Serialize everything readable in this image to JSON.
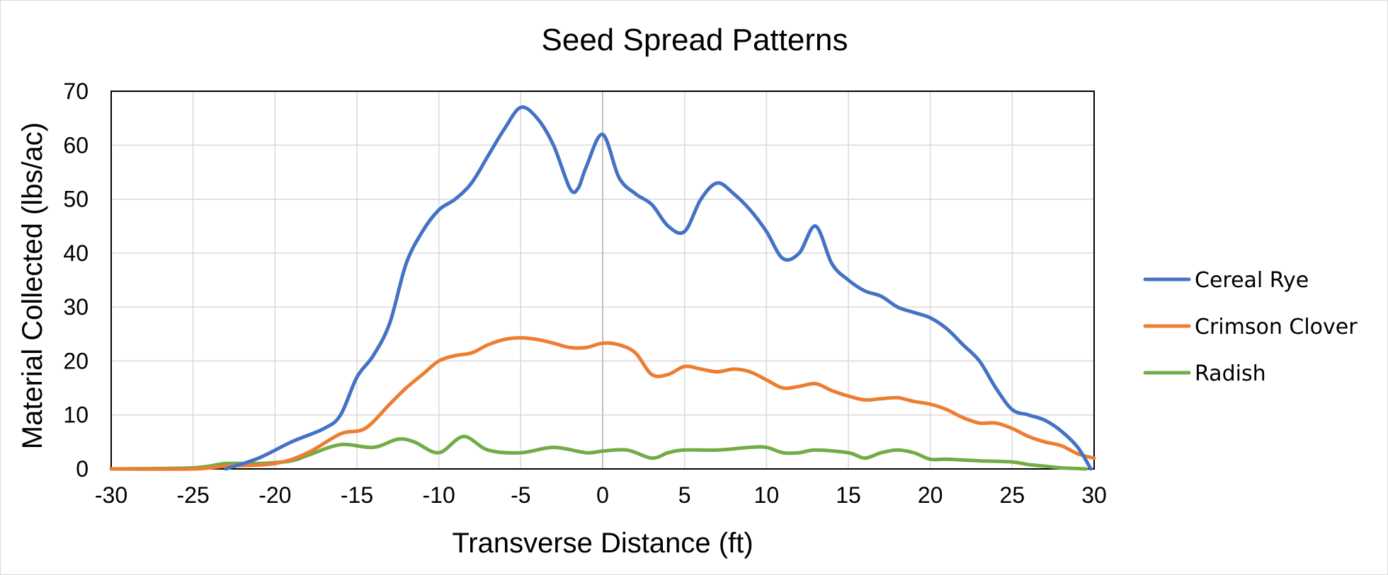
{
  "chart_data": {
    "type": "line",
    "title": "Seed Spread Patterns",
    "xlabel": "Transverse Distance (ft)",
    "ylabel": "Material  Collected (lbs/ac)",
    "xlim": [
      -30,
      30
    ],
    "ylim": [
      0,
      70
    ],
    "xticks": [
      -30,
      -25,
      -20,
      -15,
      -10,
      -5,
      0,
      5,
      10,
      15,
      20,
      25,
      30
    ],
    "yticks": [
      0,
      10,
      20,
      30,
      40,
      50,
      60,
      70
    ],
    "grid": true,
    "legend_position": "right",
    "series": [
      {
        "name": "Cereal Rye",
        "color": "#4472C4",
        "x": [
          -23,
          -21,
          -19,
          -17,
          -16,
          -15,
          -14,
          -13,
          -12,
          -11,
          -10,
          -9,
          -8,
          -7,
          -6,
          -5,
          -4,
          -3,
          -2,
          -1.5,
          -1,
          0,
          1,
          2,
          3,
          4,
          5,
          6,
          7,
          8,
          9,
          10,
          11,
          12,
          13,
          14,
          15,
          16,
          17,
          18,
          19,
          20,
          21,
          22,
          23,
          24,
          25,
          26,
          27,
          28,
          29,
          29.8
        ],
        "values": [
          0,
          2,
          5,
          7.5,
          10,
          17,
          21,
          27,
          38,
          44,
          48,
          50,
          53,
          58,
          63,
          67,
          65,
          60,
          52,
          52,
          56,
          62,
          54,
          51,
          49,
          45,
          44,
          50,
          53,
          51,
          48,
          44,
          39,
          40,
          45,
          38,
          35,
          33,
          32,
          30,
          29,
          28,
          26,
          23,
          20,
          15,
          11,
          10,
          9,
          7,
          4,
          0
        ]
      },
      {
        "name": "Crimson Clover",
        "color": "#ED7D31",
        "x": [
          -30,
          -25,
          -23,
          -20,
          -18,
          -16,
          -14.5,
          -13,
          -12,
          -11,
          -10,
          -9,
          -8,
          -7,
          -6,
          -5,
          -4,
          -3,
          -2,
          -1,
          0,
          1,
          2,
          3,
          4,
          5,
          6,
          7,
          8,
          9,
          10,
          11,
          12,
          13,
          14,
          15,
          16,
          17,
          18,
          19,
          20,
          21,
          22,
          23,
          24,
          25,
          26,
          27,
          28,
          29,
          30
        ],
        "values": [
          0,
          0,
          0.5,
          1,
          3,
          6.5,
          7.5,
          12,
          15,
          17.5,
          20,
          21,
          21.5,
          23,
          24,
          24.3,
          24,
          23.3,
          22.5,
          22.5,
          23.3,
          23,
          21.5,
          17.5,
          17.5,
          19,
          18.5,
          18,
          18.5,
          18,
          16.5,
          15,
          15.3,
          15.8,
          14.5,
          13.5,
          12.8,
          13,
          13.2,
          12.5,
          12,
          11,
          9.5,
          8.5,
          8.5,
          7.5,
          6,
          5,
          4.3,
          2.8,
          2
        ]
      },
      {
        "name": "Radish",
        "color": "#70AD47",
        "x": [
          -30,
          -25,
          -23,
          -21,
          -19,
          -18,
          -16,
          -14,
          -12.5,
          -11.5,
          -10,
          -8.5,
          -7,
          -5,
          -3,
          -1,
          0,
          1.5,
          3,
          4,
          5,
          7,
          9,
          10,
          11,
          12,
          13,
          15,
          16,
          17,
          18,
          19,
          20,
          21,
          23,
          25,
          26,
          27,
          28,
          29.5
        ],
        "values": [
          0,
          0.2,
          1,
          1,
          1.5,
          2.5,
          4.5,
          4,
          5.5,
          5,
          3,
          6,
          3.5,
          3,
          4,
          3,
          3.3,
          3.5,
          2,
          3,
          3.5,
          3.5,
          4,
          4,
          3,
          3,
          3.5,
          3,
          2,
          3,
          3.5,
          3,
          1.8,
          1.8,
          1.5,
          1.3,
          0.8,
          0.5,
          0.2,
          0
        ]
      }
    ]
  }
}
